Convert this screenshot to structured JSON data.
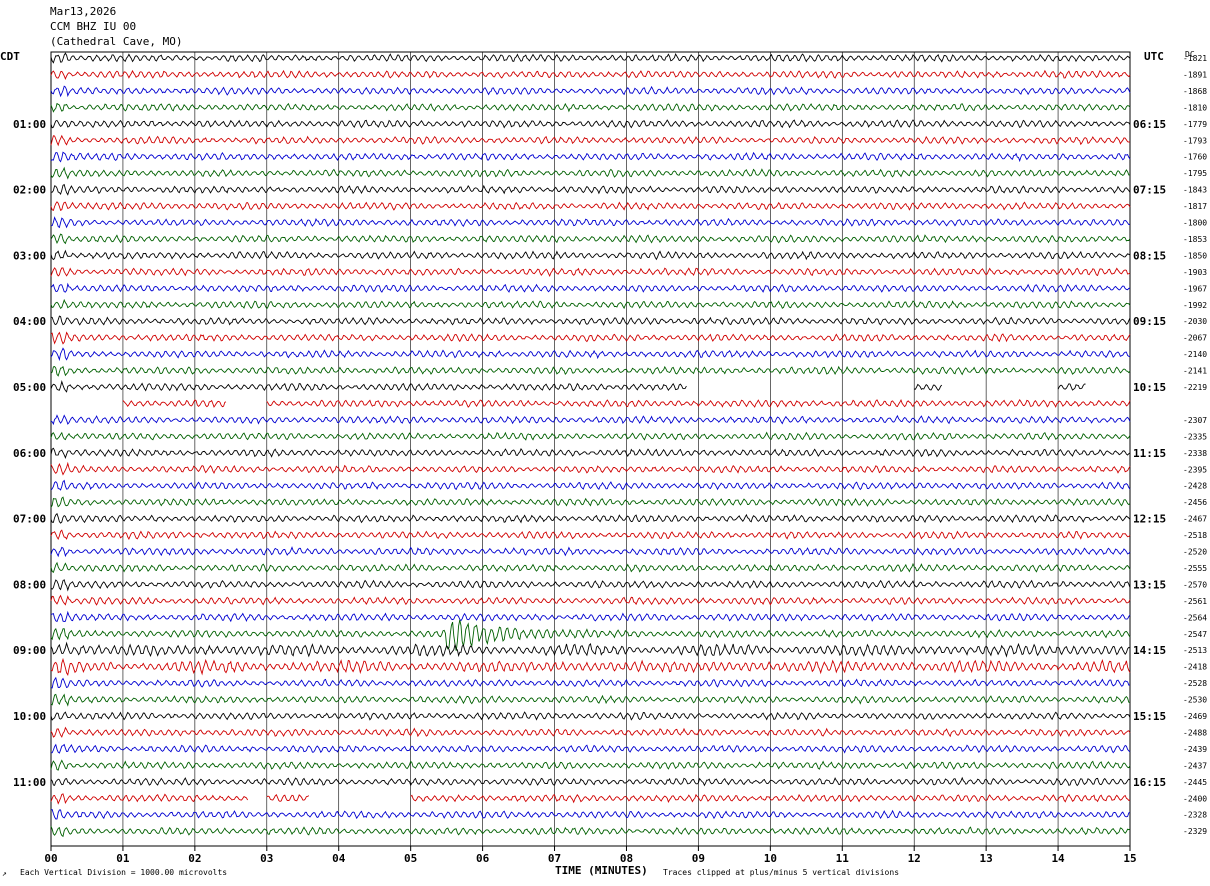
{
  "header": {
    "date": "Mar13,2026",
    "station": "CCM BHZ IU 00",
    "location": "(Cathedral Cave, MO)"
  },
  "left_label": "CDT",
  "right_label": "UTC",
  "dc_label": "DC",
  "footer": {
    "vertical_division": "Each Vertical Division = 1000.00 microvolts",
    "xlabel": "TIME (MINUTES)",
    "clip_note": "Traces clipped at plus/minus 5 vertical divisions"
  },
  "colors": {
    "trace_cycle": [
      "#000000",
      "#d00000",
      "#0000d0",
      "#006000"
    ],
    "grid": "#000000"
  },
  "chart_data": {
    "type": "line",
    "title": "",
    "xlabel": "TIME (MINUTES)",
    "xlim": [
      0,
      15
    ],
    "x_ticks": [
      "00",
      "01",
      "02",
      "03",
      "04",
      "05",
      "06",
      "07",
      "08",
      "09",
      "10",
      "11",
      "12",
      "13",
      "14",
      "15"
    ],
    "traces_per_hour": 4,
    "trace_count": 48,
    "left_hour_labels": [
      "01:00",
      "02:00",
      "03:00",
      "04:00",
      "05:00",
      "06:00",
      "07:00",
      "08:00",
      "09:00",
      "10:00",
      "11:00"
    ],
    "right_hour_labels": [
      "06:15",
      "07:15",
      "08:15",
      "09:15",
      "10:15",
      "11:15",
      "12:15",
      "13:15",
      "14:15",
      "15:15",
      "16:15"
    ],
    "dc_offsets": [
      "-1821",
      "-1891",
      "-1868",
      "-1810",
      "-1779",
      "-1793",
      "-1760",
      "-1795",
      "-1843",
      "-1817",
      "-1800",
      "-1853",
      "-1850",
      "-1903",
      "-1967",
      "-1992",
      "-2030",
      "-2067",
      "-2140",
      "-2141",
      "-2219",
      "",
      "-2307",
      "-2335",
      "-2338",
      "-2395",
      "-2428",
      "-2456",
      "-2467",
      "-2518",
      "-2520",
      "-2555",
      "-2570",
      "-2561",
      "-2564",
      "-2547",
      "-2513",
      "-2418",
      "-2528",
      "-2530",
      "-2469",
      "-2488",
      "-2439",
      "-2437",
      "-2445",
      "-2400",
      "-2328",
      "-2329"
    ],
    "gaps": [
      {
        "trace": 20,
        "from_min": 8.85,
        "to_min": 12.0
      },
      {
        "trace": 20,
        "from_min": 12.4,
        "to_min": 14.0
      },
      {
        "trace": 20,
        "from_min": 14.4,
        "to_min": 15.0
      },
      {
        "trace": 21,
        "from_min": 0.0,
        "to_min": 1.0
      },
      {
        "trace": 21,
        "from_min": 2.45,
        "to_min": 3.0
      },
      {
        "trace": 45,
        "from_min": 2.75,
        "to_min": 3.0
      },
      {
        "trace": 45,
        "from_min": 3.6,
        "to_min": 5.0
      }
    ],
    "events": [
      {
        "trace": 35,
        "start_min": 5.5,
        "duration_min": 2.5,
        "peak_divisions": 5
      },
      {
        "trace": 36,
        "start_min": 0.0,
        "duration_min": 15.0,
        "peak_divisions": 1.5
      },
      {
        "trace": 37,
        "start_min": 0.0,
        "duration_min": 15.0,
        "peak_divisions": 1.6
      }
    ]
  }
}
